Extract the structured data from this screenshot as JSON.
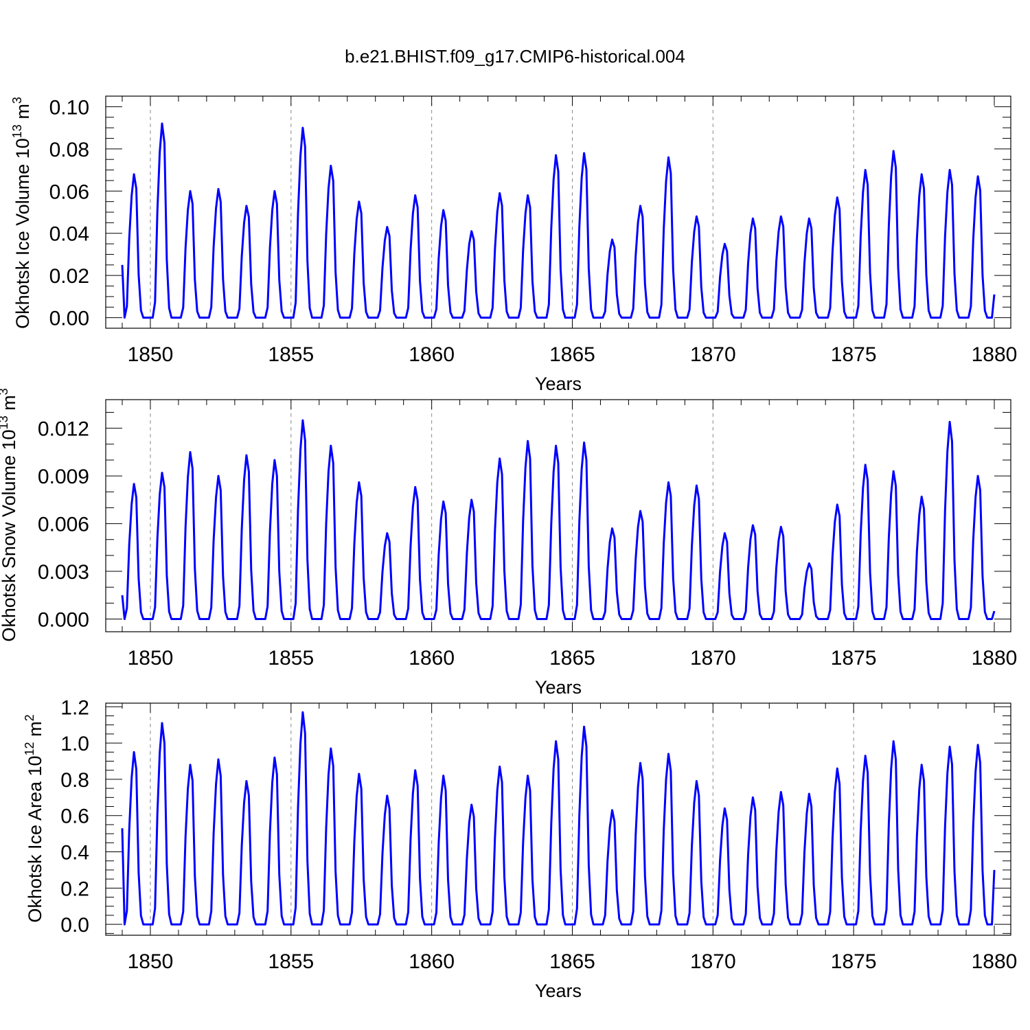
{
  "figure": {
    "title": "b.e21.BHIST.f09_g17.CMIP6-historical.004",
    "line_color": "#0000ff"
  },
  "chart_data": [
    {
      "type": "line",
      "xlabel": "Years",
      "ylabel": "Okhotsk Ice Volume 10",
      "ylabel_exp": "13",
      "ylabel_unit": " m",
      "ylabel_unit_exp": "3",
      "xlim": [
        1849,
        1880
      ],
      "xticks": [
        1850,
        1855,
        1860,
        1865,
        1870,
        1875,
        1880
      ],
      "ylim": [
        -0.005,
        0.105
      ],
      "ytick_values": [
        0.0,
        0.02,
        0.04,
        0.06,
        0.08,
        0.1
      ],
      "ytick_labels": [
        "0.00",
        "0.02",
        "0.04",
        "0.06",
        "0.08",
        "0.10"
      ],
      "minor_ystep": 0.005,
      "start_value": 0.025,
      "end_value": 0.011,
      "peaks": [
        0.068,
        0.092,
        0.06,
        0.061,
        0.053,
        0.06,
        0.09,
        0.072,
        0.055,
        0.043,
        0.058,
        0.051,
        0.041,
        0.059,
        0.058,
        0.077,
        0.078,
        0.037,
        0.053,
        0.076,
        0.048,
        0.035,
        0.047,
        0.048,
        0.047,
        0.057,
        0.07,
        0.079,
        0.068,
        0.07,
        0.067
      ]
    },
    {
      "type": "line",
      "xlabel": "Years",
      "ylabel": "Okhotsk Snow Volume 10",
      "ylabel_exp": "13",
      "ylabel_unit": " m",
      "ylabel_unit_exp": "3",
      "xlim": [
        1849,
        1880
      ],
      "xticks": [
        1850,
        1855,
        1860,
        1865,
        1870,
        1875,
        1880
      ],
      "ylim": [
        -0.0008,
        0.0138
      ],
      "ytick_values": [
        0.0,
        0.003,
        0.006,
        0.009,
        0.012
      ],
      "ytick_labels": [
        "0.000",
        "0.003",
        "0.006",
        "0.009",
        "0.012"
      ],
      "minor_ystep": 0.001,
      "start_value": 0.0015,
      "end_value": 0.0005,
      "peaks": [
        0.0085,
        0.0092,
        0.0105,
        0.009,
        0.0103,
        0.01,
        0.0125,
        0.0109,
        0.0086,
        0.0054,
        0.0083,
        0.0074,
        0.0075,
        0.0101,
        0.0112,
        0.0109,
        0.0111,
        0.0057,
        0.0068,
        0.0086,
        0.0084,
        0.0054,
        0.0059,
        0.0058,
        0.0035,
        0.0072,
        0.0097,
        0.0093,
        0.0077,
        0.0124,
        0.009
      ]
    },
    {
      "type": "line",
      "xlabel": "Years",
      "ylabel": "Okhotsk Ice Area 10",
      "ylabel_exp": "12",
      "ylabel_unit": " m",
      "ylabel_unit_exp": "2",
      "xlim": [
        1849,
        1880
      ],
      "xticks": [
        1850,
        1855,
        1860,
        1865,
        1870,
        1875,
        1880
      ],
      "ylim": [
        -0.06,
        1.22
      ],
      "ytick_values": [
        0.0,
        0.2,
        0.4,
        0.6,
        0.8,
        1.0,
        1.2
      ],
      "ytick_labels": [
        "0.0",
        "0.2",
        "0.4",
        "0.6",
        "0.8",
        "1.0",
        "1.2"
      ],
      "minor_ystep": 0.05,
      "start_value": 0.53,
      "end_value": 0.3,
      "peaks": [
        0.95,
        1.11,
        0.88,
        0.91,
        0.79,
        0.92,
        1.17,
        0.97,
        0.83,
        0.71,
        0.85,
        0.82,
        0.66,
        0.87,
        0.82,
        1.01,
        1.09,
        0.63,
        0.89,
        0.94,
        0.79,
        0.64,
        0.7,
        0.73,
        0.72,
        0.86,
        0.93,
        1.01,
        0.88,
        0.98,
        0.99
      ]
    }
  ]
}
